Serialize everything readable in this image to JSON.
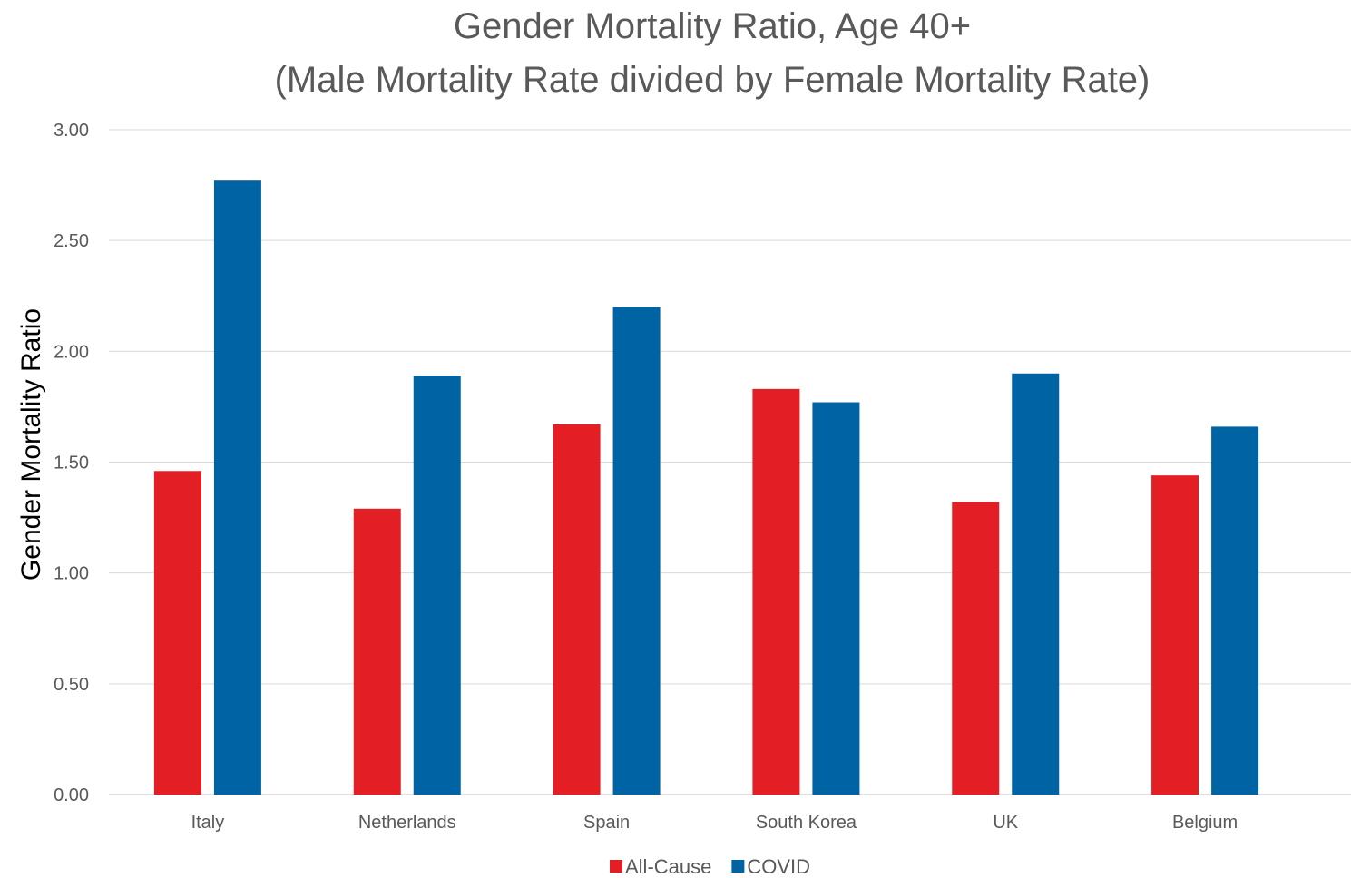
{
  "chart_data": {
    "type": "bar",
    "title": "Gender Mortality Ratio, Age 40+",
    "subtitle": "(Male Mortality Rate divided by Female Mortality Rate)",
    "xlabel": "",
    "ylabel": "Gender Mortality Ratio",
    "ylim": [
      0,
      3
    ],
    "yticks": [
      "0.00",
      "0.50",
      "1.00",
      "1.50",
      "2.00",
      "2.50",
      "3.00"
    ],
    "grid": true,
    "legend_position": "bottom",
    "categories": [
      "Italy",
      "Netherlands",
      "Spain",
      "South Korea",
      "UK",
      "Belgium"
    ],
    "series": [
      {
        "name": "All-Cause",
        "color": "#e31e24",
        "values": [
          1.46,
          1.29,
          1.67,
          1.83,
          1.32,
          1.44
        ]
      },
      {
        "name": "COVID",
        "color": "#0063a3",
        "values": [
          2.77,
          1.89,
          2.2,
          1.77,
          1.9,
          1.66
        ]
      }
    ]
  }
}
